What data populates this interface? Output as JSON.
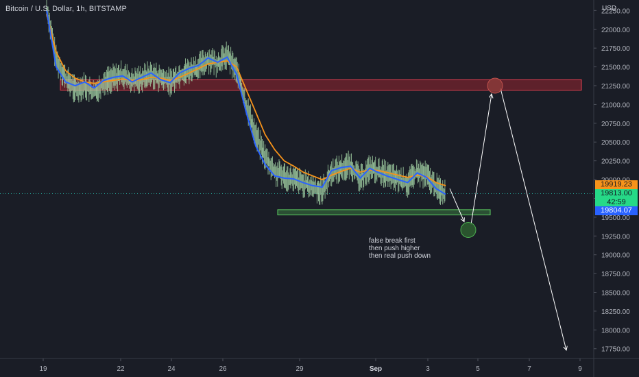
{
  "header": {
    "symbol_title": "Bitcoin / U.S. Dollar, 1h, BITSTAMP"
  },
  "price_axis": {
    "currency_label": "USD",
    "ticks": [
      "22250.00",
      "22000.00",
      "21750.00",
      "21500.00",
      "21250.00",
      "21000.00",
      "20750.00",
      "20500.00",
      "20250.00",
      "20000.00",
      "19750.00",
      "19500.00",
      "19250.00",
      "19000.00",
      "18750.00",
      "18500.00",
      "18250.00",
      "18000.00",
      "17750.00"
    ],
    "badges": {
      "ma_orange": "19919.23",
      "last_price": "19813.00",
      "countdown": "42:59",
      "ma_blue": "19804.07"
    }
  },
  "time_axis": {
    "ticks": [
      "19",
      "22",
      "24",
      "26",
      "29",
      "Sep",
      "3",
      "5",
      "7",
      "9"
    ]
  },
  "annotation": {
    "lines": [
      "false break first",
      "then push higher",
      "then real push down"
    ]
  },
  "colors": {
    "background": "#1a1d26",
    "candle": "#a5d6a7",
    "ma_fast": "#2962ff",
    "ma_slow": "#f7931a",
    "resistance_zone": "#b22833",
    "support_zone": "#4caf50",
    "arrow": "#ffffff"
  },
  "chart_data": {
    "type": "line",
    "title": "Bitcoin / U.S. Dollar, 1h, BITSTAMP",
    "xlabel": "",
    "ylabel": "USD",
    "ylim": [
      17620,
      22390
    ],
    "x_ticks": [
      "19",
      "22",
      "24",
      "26",
      "29",
      "Sep",
      "3",
      "5",
      "7",
      "9"
    ],
    "series": [
      {
        "values_close_approx": [
          22300,
          21600,
          21350,
          21200,
          21250,
          21150,
          21300,
          21350,
          21400,
          21300,
          21350,
          21400,
          21350,
          21300,
          21400,
          21450,
          21500,
          21600,
          21550,
          21650,
          21450,
          21000,
          20600,
          20300,
          20100,
          20050,
          20000,
          19950,
          19900,
          19850,
          20100,
          20150,
          20200,
          20000,
          20150,
          20100,
          20050,
          20000,
          19950,
          20100,
          20050,
          19900,
          19813
        ]
      },
      {
        "values_approx": [
          22200,
          21700,
          21450,
          21350,
          21300,
          21280,
          21300,
          21320,
          21340,
          21320,
          21330,
          21360,
          21350,
          21320,
          21360,
          21420,
          21480,
          21540,
          21560,
          21580,
          21500,
          21200,
          20900,
          20600,
          20400,
          20250,
          20180,
          20100,
          20050,
          20000,
          20060,
          20110,
          20150,
          20100,
          20130,
          20120,
          20090,
          20060,
          20030,
          20060,
          20040,
          19960,
          19919
        ]
      },
      {
        "values_approx": [
          22250,
          21500,
          21300,
          21250,
          21300,
          21220,
          21320,
          21360,
          21380,
          21300,
          21360,
          21420,
          21330,
          21290,
          21420,
          21480,
          21520,
          21620,
          21560,
          21630,
          21400,
          20900,
          20450,
          20200,
          20050,
          20020,
          20010,
          19960,
          19920,
          19900,
          20120,
          20160,
          20180,
          20020,
          20150,
          20090,
          20040,
          20000,
          19960,
          20090,
          20030,
          19880,
          19804
        ]
      }
    ],
    "zones": [
      {
        "label": "",
        "y_low": 21190,
        "y_high": 21330
      },
      {
        "label": "",
        "y_low": 19530,
        "y_high": 19600
      }
    ],
    "projection_path": [
      {
        "day": "Sep 4",
        "price": 19330
      },
      {
        "day": "Sep 6",
        "price": 21250
      },
      {
        "day": "Sep 9",
        "price": 17730
      }
    ],
    "grid": false,
    "last_price": 19813.0
  }
}
